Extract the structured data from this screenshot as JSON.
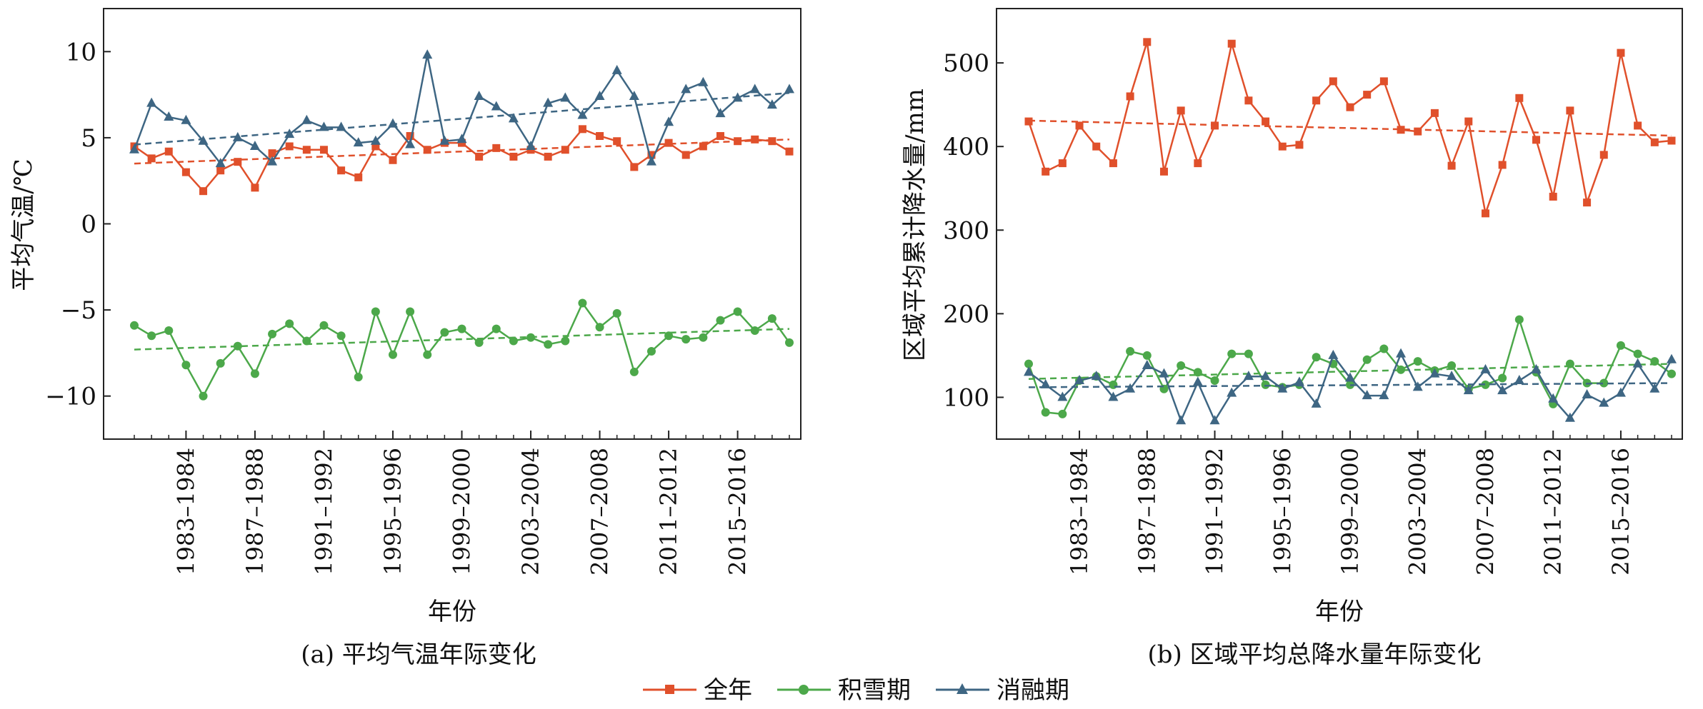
{
  "legend": [
    {
      "label": "全年",
      "color": "#E0502B",
      "marker": "square"
    },
    {
      "label": "积雪期",
      "color": "#4CA84A",
      "marker": "circle"
    },
    {
      "label": "消融期",
      "color": "#3E6683",
      "marker": "triangle"
    }
  ],
  "chart_data": [
    {
      "type": "line",
      "caption": "(a) 平均气温年际变化",
      "xlabel": "年份",
      "ylabel": "平均气温/℃",
      "x_tick_labels": [
        "1983–1984",
        "1987–1988",
        "1991–1992",
        "1995–1996",
        "1999–2000",
        "2003–2004",
        "2007–2008",
        "2011–2012",
        "2015–2016"
      ],
      "x_tick_indices": [
        3,
        7,
        11,
        15,
        19,
        23,
        27,
        31,
        35
      ],
      "ylim": [
        -12.5,
        12.5
      ],
      "yticks": [
        -10,
        -5,
        0,
        5,
        10
      ],
      "ytick_labels": [
        "−10",
        "−5",
        "0",
        "5",
        "10"
      ],
      "series": [
        {
          "name": "全年",
          "color": "#E0502B",
          "marker": "square",
          "values": [
            4.5,
            3.8,
            4.2,
            3.0,
            1.9,
            3.1,
            3.6,
            2.1,
            4.1,
            4.5,
            4.3,
            4.3,
            3.1,
            2.7,
            4.5,
            3.7,
            5.1,
            4.3,
            4.7,
            4.7,
            3.9,
            4.4,
            3.9,
            4.3,
            3.9,
            4.3,
            5.5,
            5.1,
            4.8,
            3.3,
            4.0,
            4.7,
            4.0,
            4.5,
            5.1,
            4.8,
            4.9,
            4.8,
            4.2
          ],
          "trend": [
            3.5,
            4.9
          ]
        },
        {
          "name": "积雪期",
          "color": "#4CA84A",
          "marker": "circle",
          "values": [
            -5.9,
            -6.5,
            -6.2,
            -8.2,
            -10.0,
            -8.1,
            -7.1,
            -8.7,
            -6.4,
            -5.8,
            -6.8,
            -5.9,
            -6.5,
            -8.9,
            -5.1,
            -7.6,
            -5.1,
            -7.6,
            -6.3,
            -6.1,
            -6.9,
            -6.1,
            -6.8,
            -6.6,
            -7.0,
            -6.8,
            -4.6,
            -6.0,
            -5.2,
            -8.6,
            -7.4,
            -6.5,
            -6.7,
            -6.6,
            -5.6,
            -5.1,
            -6.2,
            -5.5,
            -6.9
          ],
          "trend": [
            -7.3,
            -6.1
          ]
        },
        {
          "name": "消融期",
          "color": "#3E6683",
          "marker": "triangle",
          "values": [
            4.3,
            7.0,
            6.2,
            6.0,
            4.8,
            3.5,
            5.0,
            4.5,
            3.6,
            5.2,
            6.0,
            5.6,
            5.6,
            4.7,
            4.8,
            5.8,
            4.6,
            9.8,
            4.8,
            4.9,
            7.4,
            6.8,
            6.1,
            4.5,
            7.0,
            7.3,
            6.3,
            7.4,
            8.9,
            7.4,
            3.6,
            5.9,
            7.8,
            8.2,
            6.4,
            7.3,
            7.8,
            6.9,
            7.8
          ],
          "trend": [
            4.6,
            7.6
          ]
        }
      ]
    },
    {
      "type": "line",
      "caption": "(b) 区域平均总降水量年际变化",
      "xlabel": "年份",
      "ylabel": "区域平均累计降水量/mm",
      "x_tick_labels": [
        "1983–1984",
        "1987–1988",
        "1991–1992",
        "1995–1996",
        "1999–2000",
        "2003–2004",
        "2007–2008",
        "2011–2012",
        "2015–2016"
      ],
      "x_tick_indices": [
        3,
        7,
        11,
        15,
        19,
        23,
        27,
        31,
        35
      ],
      "ylim": [
        50,
        565
      ],
      "yticks": [
        100,
        200,
        300,
        400,
        500
      ],
      "ytick_labels": [
        "100",
        "200",
        "300",
        "400",
        "500"
      ],
      "series": [
        {
          "name": "全年",
          "color": "#E0502B",
          "marker": "square",
          "values": [
            430,
            370,
            380,
            425,
            400,
            380,
            460,
            525,
            370,
            443,
            380,
            425,
            523,
            455,
            430,
            400,
            402,
            455,
            478,
            447,
            462,
            478,
            420,
            418,
            440,
            377,
            430,
            320,
            378,
            458,
            408,
            340,
            443,
            333,
            390,
            512,
            425,
            405,
            407
          ],
          "trend": [
            431,
            413
          ]
        },
        {
          "name": "积雪期",
          "color": "#4CA84A",
          "marker": "circle",
          "values": [
            140,
            82,
            80,
            120,
            125,
            115,
            155,
            150,
            110,
            138,
            130,
            120,
            152,
            152,
            115,
            112,
            115,
            148,
            140,
            115,
            145,
            158,
            133,
            143,
            132,
            138,
            110,
            115,
            123,
            193,
            130,
            92,
            140,
            117,
            117,
            162,
            152,
            143,
            128
          ],
          "trend": [
            122,
            140
          ]
        },
        {
          "name": "消融期",
          "color": "#3E6683",
          "marker": "triangle",
          "values": [
            130,
            115,
            100,
            120,
            125,
            100,
            110,
            138,
            128,
            72,
            118,
            72,
            105,
            125,
            125,
            110,
            118,
            92,
            150,
            123,
            102,
            102,
            152,
            112,
            128,
            125,
            108,
            133,
            108,
            120,
            133,
            98,
            75,
            103,
            93,
            105,
            140,
            110,
            145
          ],
          "trend": [
            112,
            117
          ]
        }
      ]
    }
  ]
}
